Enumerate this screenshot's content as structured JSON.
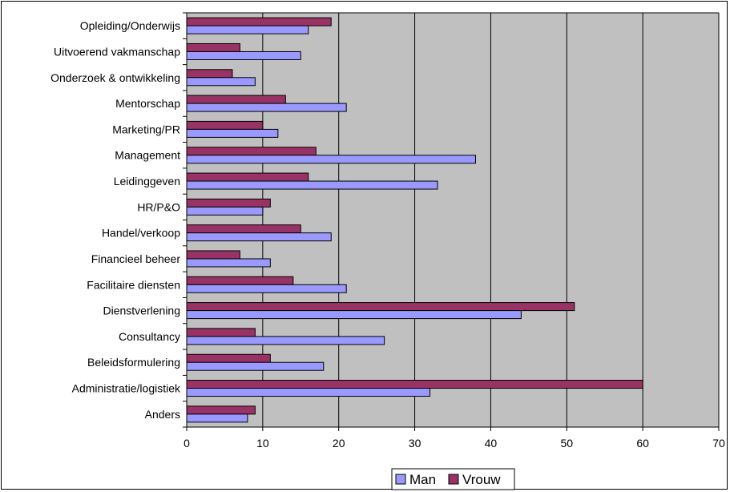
{
  "chart_data": {
    "type": "bar",
    "orientation": "horizontal",
    "categories": [
      "Opleiding/Onderwijs",
      "Uitvoerend vakmanschap",
      "Onderzoek & ontwikkeling",
      "Mentorschap",
      "Marketing/PR",
      "Management",
      "Leidinggeven",
      "HR/P&O",
      "Handel/verkoop",
      "Financieel beheer",
      "Facilitaire diensten",
      "Dienstverlening",
      "Consultancy",
      "Beleidsformulering",
      "Administratie/logistiek",
      "Anders"
    ],
    "series": [
      {
        "name": "Man",
        "color": "#9999ff",
        "values": [
          16,
          15,
          9,
          21,
          12,
          38,
          33,
          10,
          19,
          11,
          21,
          44,
          26,
          18,
          32,
          8
        ]
      },
      {
        "name": "Vrouw",
        "color": "#993366",
        "values": [
          19,
          7,
          6,
          13,
          10,
          17,
          16,
          11,
          15,
          7,
          14,
          51,
          9,
          11,
          60,
          9
        ]
      }
    ],
    "x_ticks": [
      "0",
      "10",
      "20",
      "30",
      "40",
      "50",
      "60",
      "70"
    ],
    "xlim": [
      0,
      70
    ],
    "grid": "vertical",
    "plot_background": "#c0c0c0",
    "legend": {
      "position": "bottom",
      "entries": [
        "Man",
        "Vrouw"
      ]
    },
    "title": "",
    "xlabel": "",
    "ylabel": ""
  }
}
